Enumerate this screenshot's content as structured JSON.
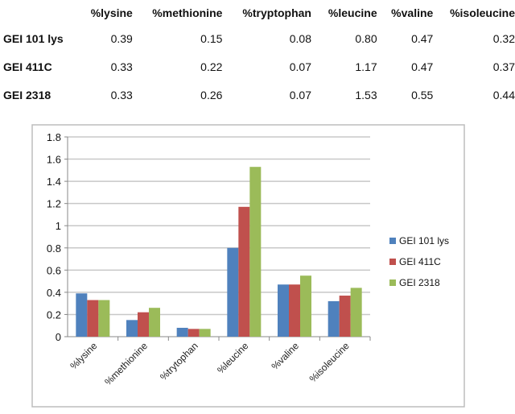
{
  "table": {
    "columns": [
      "%lysine",
      "%methionine",
      "%tryptophan",
      "%leucine",
      "%valine",
      "%isoleucine"
    ],
    "rows": [
      {
        "label": "GEI 101 lys",
        "values": [
          "0.39",
          "0.15",
          "0.08",
          "0.80",
          "0.47",
          "0.32"
        ]
      },
      {
        "label": "GEI 411C",
        "values": [
          "0.33",
          "0.22",
          "0.07",
          "1.17",
          "0.47",
          "0.37"
        ]
      },
      {
        "label": "GEI 2318",
        "values": [
          "0.33",
          "0.26",
          "0.07",
          "1.53",
          "0.55",
          "0.44"
        ]
      }
    ]
  },
  "chart_data": {
    "type": "bar",
    "categories": [
      "%lysine",
      "%methionine",
      "%trytophan",
      "%leucine",
      "%valine",
      "%isoleucine"
    ],
    "series": [
      {
        "name": "GEI 101 lys",
        "values": [
          0.39,
          0.15,
          0.08,
          0.8,
          0.47,
          0.32
        ],
        "color": "#4f81bd"
      },
      {
        "name": "GEI 411C",
        "values": [
          0.33,
          0.22,
          0.07,
          1.17,
          0.47,
          0.37
        ],
        "color": "#c0504d"
      },
      {
        "name": "GEI 2318",
        "values": [
          0.33,
          0.26,
          0.07,
          1.53,
          0.55,
          0.44
        ],
        "color": "#9bbb59"
      }
    ],
    "ylim": [
      0,
      1.8
    ],
    "yticks": [
      "0",
      "0.2",
      "0.4",
      "0.6",
      "0.8",
      "1",
      "1.2",
      "1.4",
      "1.6",
      "1.8"
    ],
    "grid": true,
    "legend": "right"
  }
}
